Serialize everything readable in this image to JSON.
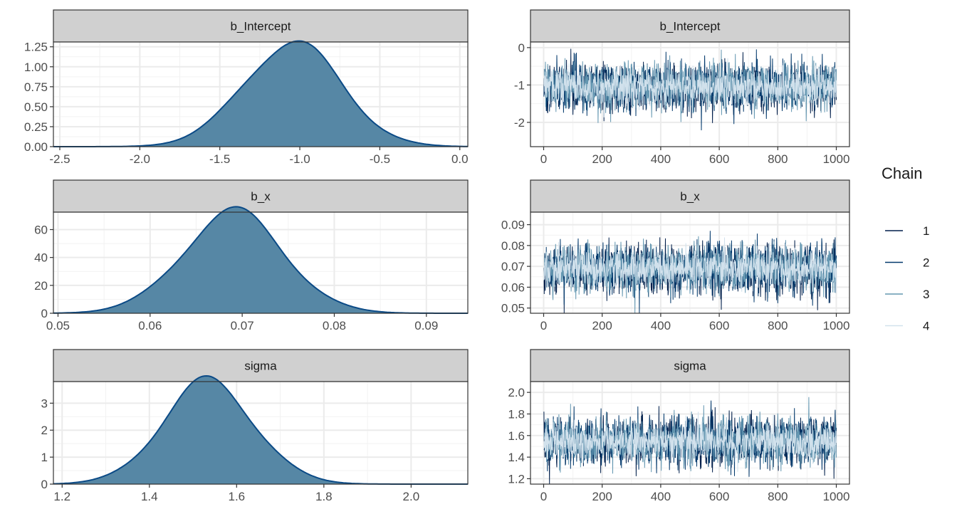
{
  "chart_data": {
    "type": "density+trace",
    "legend": {
      "title": "Chain",
      "entries": [
        "1",
        "2",
        "3",
        "4"
      ],
      "position": "right"
    },
    "colors": {
      "chain_1": "#011f4b",
      "chain_2": "#03396c",
      "chain_3": "#6497b1",
      "chain_4": "#d1e1ec",
      "density_fill": "#5687a5",
      "density_line": "#0b4a86"
    },
    "iterations": 1000,
    "panels": [
      {
        "parameter": "b_Intercept",
        "density": {
          "mean": -1.05,
          "sd": 0.305,
          "xlim": [
            -2.54,
            0.05
          ],
          "ylim": [
            0,
            1.31
          ],
          "xticks": [
            "-2.5",
            "-2.0",
            "-1.5",
            "-1.0",
            "-0.5",
            "0.0"
          ],
          "yticks": [
            "0.00",
            "0.25",
            "0.50",
            "0.75",
            "1.00",
            "1.25"
          ]
        },
        "trace": {
          "mean": -1.05,
          "sd": 0.3,
          "ylim": [
            -2.65,
            0.15
          ],
          "xticks": [
            "0",
            "200",
            "400",
            "600",
            "800",
            "1000"
          ],
          "yticks": [
            "-2",
            "-1",
            "0"
          ]
        }
      },
      {
        "parameter": "b_x",
        "density": {
          "mean": 0.069,
          "sd": 0.0055,
          "xlim": [
            0.0495,
            0.0945
          ],
          "ylim": [
            0,
            72.5
          ],
          "xticks": [
            "0.05",
            "0.06",
            "0.07",
            "0.08",
            "0.09"
          ],
          "yticks": [
            "0",
            "20",
            "40",
            "60"
          ]
        },
        "trace": {
          "mean": 0.069,
          "sd": 0.0055,
          "ylim": [
            0.0475,
            0.096
          ],
          "xticks": [
            "0",
            "200",
            "400",
            "600",
            "800",
            "1000"
          ],
          "yticks": [
            "0.05",
            "0.06",
            "0.07",
            "0.08",
            "0.09"
          ]
        }
      },
      {
        "parameter": "sigma",
        "density": {
          "mean": 1.535,
          "sd": 0.105,
          "xlim": [
            1.18,
            2.13
          ],
          "ylim": [
            0,
            3.8
          ],
          "xticks": [
            "1.2",
            "1.4",
            "1.6",
            "1.8",
            "2.0"
          ],
          "yticks": [
            "0",
            "1",
            "2",
            "3"
          ]
        },
        "trace": {
          "mean": 1.55,
          "sd": 0.105,
          "ylim": [
            1.15,
            2.1
          ],
          "xticks": [
            "0",
            "200",
            "400",
            "600",
            "800",
            "1000"
          ],
          "yticks": [
            "1.2",
            "1.4",
            "1.6",
            "1.8",
            "2.0"
          ]
        }
      }
    ]
  }
}
